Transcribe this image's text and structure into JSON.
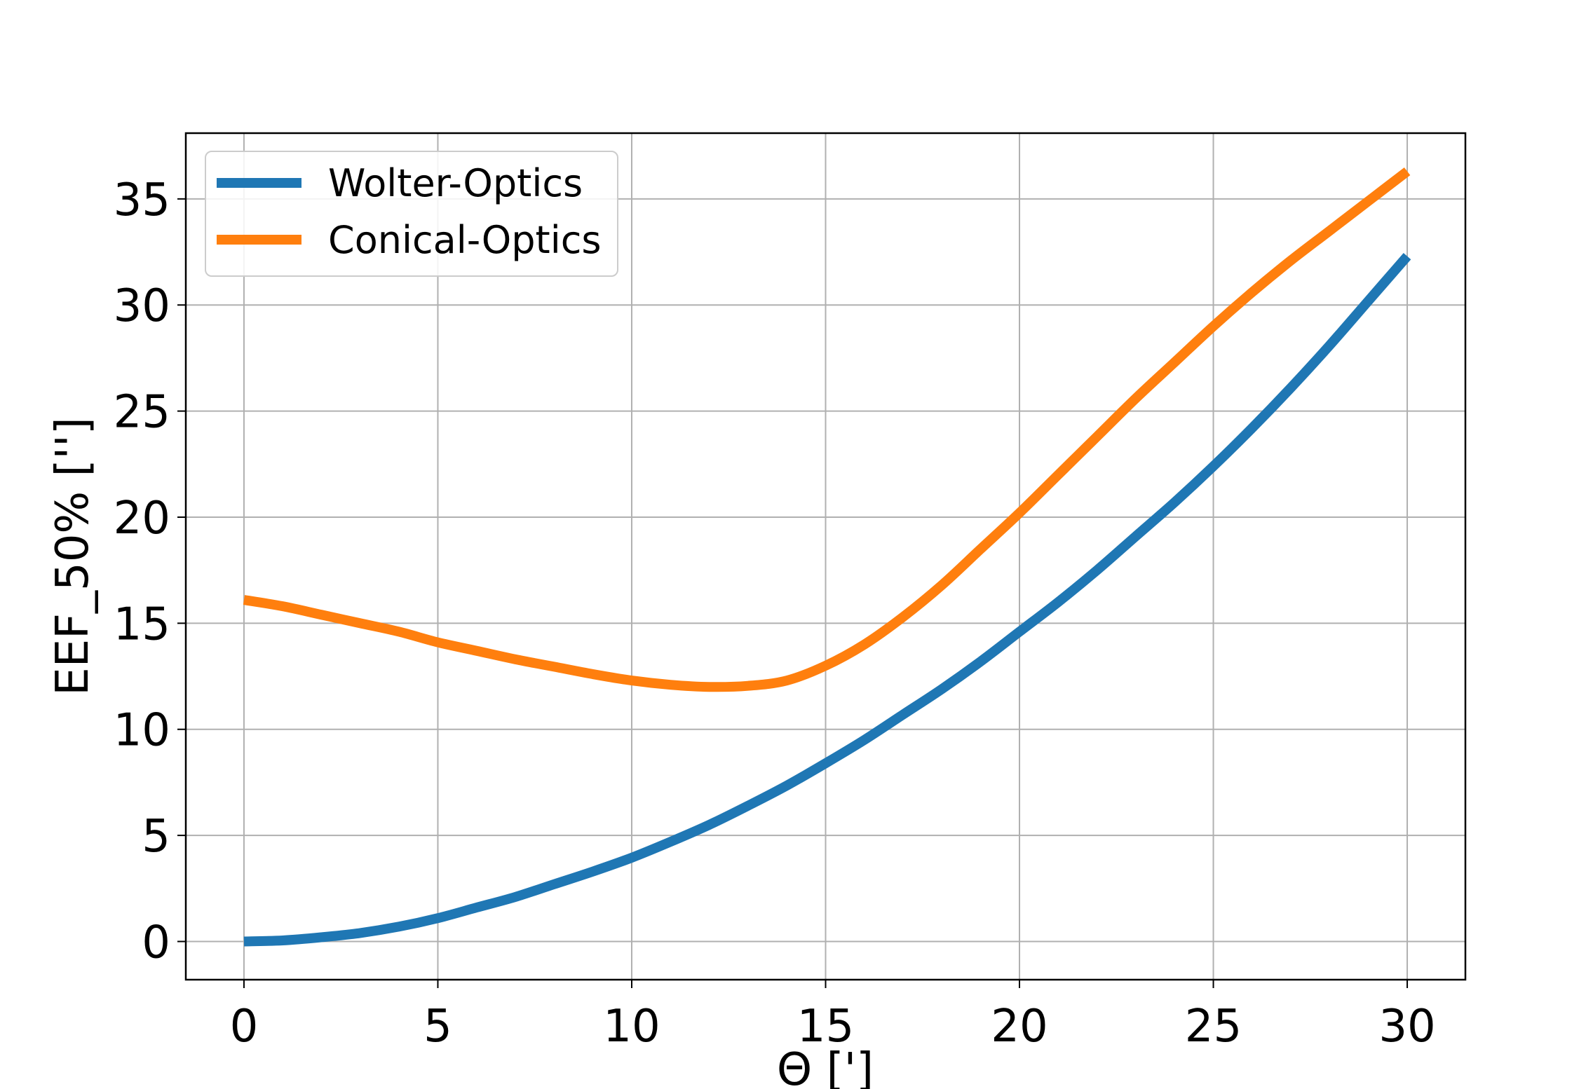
{
  "chart_data": {
    "type": "line",
    "title": "",
    "xlabel": "Θ [']",
    "ylabel": "EEF_50% ['']",
    "xlim": [
      -1.5,
      31.5
    ],
    "ylim": [
      -1.8,
      38.1
    ],
    "xticks": [
      0,
      5,
      10,
      15,
      20,
      25,
      30
    ],
    "yticks": [
      0,
      5,
      10,
      15,
      20,
      25,
      30,
      35
    ],
    "grid": true,
    "legend_position": "top-left",
    "series": [
      {
        "name": "Wolter-Optics",
        "color": "#1f77b4",
        "x": [
          0,
          1,
          2,
          3,
          4,
          5,
          6,
          7,
          8,
          9,
          10,
          11,
          12,
          13,
          14,
          15,
          16,
          17,
          18,
          19,
          20,
          21,
          22,
          23,
          24,
          25,
          26,
          27,
          28,
          29,
          30
        ],
        "y": [
          0.0,
          0.05,
          0.2,
          0.4,
          0.7,
          1.1,
          1.6,
          2.1,
          2.7,
          3.3,
          3.95,
          4.7,
          5.5,
          6.4,
          7.35,
          8.4,
          9.5,
          10.7,
          11.9,
          13.2,
          14.6,
          16.0,
          17.5,
          19.1,
          20.7,
          22.4,
          24.2,
          26.1,
          28.1,
          30.2,
          32.3
        ]
      },
      {
        "name": "Conical-Optics",
        "color": "#ff7f0e",
        "x": [
          0,
          1,
          2,
          3,
          4,
          5,
          6,
          7,
          8,
          9,
          10,
          11,
          12,
          13,
          14,
          15,
          16,
          17,
          18,
          19,
          20,
          21,
          22,
          23,
          24,
          25,
          26,
          27,
          28,
          29,
          30
        ],
        "y": [
          16.1,
          15.8,
          15.4,
          15.0,
          14.6,
          14.1,
          13.7,
          13.3,
          12.95,
          12.6,
          12.3,
          12.1,
          12.0,
          12.05,
          12.3,
          13.0,
          14.0,
          15.3,
          16.8,
          18.5,
          20.2,
          22.0,
          23.8,
          25.6,
          27.3,
          29.0,
          30.6,
          32.1,
          33.5,
          34.9,
          36.3
        ]
      }
    ]
  }
}
